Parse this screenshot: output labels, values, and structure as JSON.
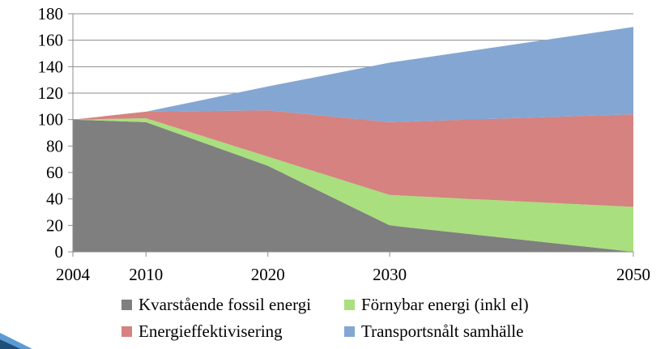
{
  "chart_data": {
    "type": "area",
    "stacked": true,
    "x": [
      "2004",
      "2010",
      "2020",
      "2030",
      "2050"
    ],
    "x_positions": [
      2004,
      2010,
      2020,
      2030,
      2050
    ],
    "xlim": [
      2004,
      2050
    ],
    "ylim": [
      0,
      180
    ],
    "yticks": [
      0,
      20,
      40,
      60,
      80,
      100,
      120,
      140,
      160,
      180
    ],
    "ytick_labels": [
      "0",
      "20",
      "40",
      "60",
      "80",
      "100",
      "120",
      "140",
      "160",
      "180"
    ],
    "grid": "horizontal",
    "legend_position": "bottom",
    "series": [
      {
        "name": "Kvarstående fossil energi",
        "color": "#7f7f7f",
        "values": [
          100,
          98,
          65,
          20,
          0
        ]
      },
      {
        "name": "Förnybar energi (inkl el)",
        "color": "#a9df7e",
        "values": [
          0,
          3,
          7,
          23,
          34
        ]
      },
      {
        "name": "Energieffektivisering",
        "color": "#d58280",
        "values": [
          0,
          5,
          35,
          55,
          70
        ]
      },
      {
        "name": "Transportsnålt samhälle",
        "color": "#84a6d3",
        "values": [
          0,
          0,
          18,
          45,
          66
        ]
      }
    ]
  },
  "icons": {
    "corner": "blue-corner-arrow"
  },
  "colors": {
    "corner_dark": "#1f4e79",
    "corner_light": "#5b9bd5"
  }
}
